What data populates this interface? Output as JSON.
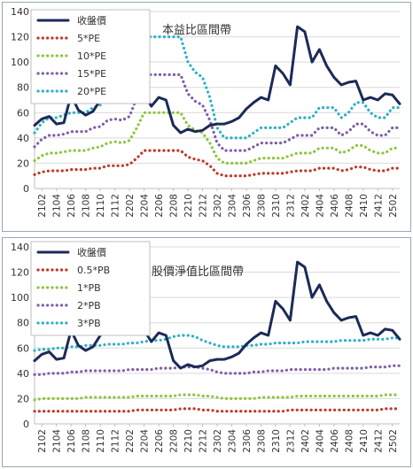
{
  "chart_data": [
    {
      "type": "line",
      "title": "本益比區間帶",
      "xlabel": "",
      "ylabel": "",
      "ylim": [
        0,
        140
      ],
      "yticks": [
        0,
        20,
        40,
        60,
        80,
        100,
        120,
        140
      ],
      "grid": true,
      "legend_position": "top-left",
      "x": [
        "2101",
        "2102",
        "2103",
        "2104",
        "2105",
        "2106",
        "2107",
        "2108",
        "2109",
        "2110",
        "2111",
        "2112",
        "2201",
        "2202",
        "2203",
        "2204",
        "2205",
        "2206",
        "2207",
        "2208",
        "2209",
        "2210",
        "2211",
        "2212",
        "2301",
        "2302",
        "2303",
        "2304",
        "2305",
        "2306",
        "2307",
        "2308",
        "2309",
        "2310",
        "2311",
        "2312",
        "2401",
        "2402",
        "2403",
        "2404",
        "2405",
        "2406",
        "2407",
        "2408",
        "2409",
        "2410",
        "2411",
        "2412",
        "2501",
        "2502",
        "2503"
      ],
      "xtick_labels": [
        "2102",
        "2104",
        "2106",
        "2108",
        "2110",
        "2112",
        "2202",
        "2204",
        "2206",
        "2208",
        "2210",
        "2212",
        "2302",
        "2304",
        "2306",
        "2308",
        "2310",
        "2312",
        "2402",
        "2404",
        "2406",
        "2408",
        "2410",
        "2412",
        "2502"
      ],
      "series": [
        {
          "name": "收盤價",
          "color": "#1b2a57",
          "style": "solid",
          "values": [
            50,
            55,
            57,
            51,
            52,
            74,
            62,
            58,
            61,
            70,
            80,
            72,
            83,
            88,
            72,
            74,
            65,
            72,
            70,
            50,
            44,
            47,
            45,
            46,
            50,
            51,
            51,
            53,
            56,
            63,
            68,
            72,
            70,
            97,
            91,
            82,
            128,
            124,
            100,
            110,
            97,
            88,
            82,
            84,
            85,
            70,
            72,
            70,
            75,
            74,
            67
          ]
        },
        {
          "name": "5*PE",
          "color": "#c0392b",
          "style": "dotted",
          "values": [
            11,
            13,
            14,
            14,
            14,
            15,
            15,
            15,
            16,
            16,
            18,
            18,
            18,
            19,
            24,
            30,
            30,
            30,
            30,
            30,
            30,
            25,
            23,
            22,
            18,
            12,
            10,
            10,
            10,
            10,
            11,
            12,
            12,
            12,
            12,
            13,
            14,
            14,
            14,
            16,
            16,
            16,
            14,
            15,
            17,
            17,
            15,
            14,
            14,
            16,
            16
          ]
        },
        {
          "name": "10*PE",
          "color": "#8dc63f",
          "style": "dotted",
          "values": [
            22,
            26,
            28,
            28,
            29,
            30,
            30,
            30,
            32,
            33,
            36,
            37,
            36,
            38,
            48,
            60,
            60,
            60,
            60,
            60,
            60,
            50,
            46,
            44,
            36,
            24,
            20,
            20,
            20,
            20,
            22,
            24,
            24,
            24,
            24,
            26,
            28,
            28,
            28,
            32,
            32,
            32,
            28,
            30,
            34,
            34,
            30,
            28,
            28,
            32,
            32
          ]
        },
        {
          "name": "15*PE",
          "color": "#7f5fa8",
          "style": "dotted",
          "values": [
            33,
            39,
            42,
            42,
            43,
            45,
            45,
            45,
            48,
            49,
            54,
            55,
            54,
            57,
            72,
            90,
            90,
            90,
            90,
            90,
            90,
            75,
            69,
            66,
            54,
            36,
            30,
            30,
            30,
            30,
            33,
            36,
            36,
            36,
            36,
            39,
            42,
            42,
            42,
            48,
            48,
            48,
            42,
            45,
            51,
            51,
            45,
            42,
            42,
            48,
            48
          ]
        },
        {
          "name": "20*PE",
          "color": "#2fb0c6",
          "style": "dotted",
          "values": [
            44,
            52,
            56,
            56,
            58,
            60,
            60,
            60,
            64,
            66,
            72,
            74,
            72,
            76,
            96,
            120,
            120,
            120,
            120,
            120,
            120,
            100,
            92,
            88,
            72,
            48,
            40,
            40,
            40,
            40,
            44,
            48,
            48,
            48,
            48,
            52,
            56,
            56,
            56,
            64,
            64,
            64,
            56,
            60,
            68,
            68,
            60,
            56,
            56,
            64,
            64
          ]
        }
      ]
    },
    {
      "type": "line",
      "title": "股價淨值比區間帶",
      "xlabel": "",
      "ylabel": "",
      "ylim": [
        0,
        140
      ],
      "yticks": [
        0,
        20,
        40,
        60,
        80,
        100,
        120,
        140
      ],
      "grid": true,
      "legend_position": "top-left",
      "x": [
        "2101",
        "2102",
        "2103",
        "2104",
        "2105",
        "2106",
        "2107",
        "2108",
        "2109",
        "2110",
        "2111",
        "2112",
        "2201",
        "2202",
        "2203",
        "2204",
        "2205",
        "2206",
        "2207",
        "2208",
        "2209",
        "2210",
        "2211",
        "2212",
        "2301",
        "2302",
        "2303",
        "2304",
        "2305",
        "2306",
        "2307",
        "2308",
        "2309",
        "2310",
        "2311",
        "2312",
        "2401",
        "2402",
        "2403",
        "2404",
        "2405",
        "2406",
        "2407",
        "2408",
        "2409",
        "2410",
        "2411",
        "2412",
        "2501",
        "2502",
        "2503"
      ],
      "xtick_labels": [
        "2102",
        "2104",
        "2106",
        "2108",
        "2110",
        "2112",
        "2202",
        "2204",
        "2206",
        "2208",
        "2210",
        "2212",
        "2302",
        "2304",
        "2306",
        "2308",
        "2310",
        "2312",
        "2402",
        "2404",
        "2406",
        "2408",
        "2410",
        "2412",
        "2502"
      ],
      "series": [
        {
          "name": "收盤價",
          "color": "#1b2a57",
          "style": "solid",
          "values": [
            50,
            55,
            57,
            51,
            52,
            74,
            62,
            58,
            61,
            70,
            80,
            72,
            83,
            88,
            72,
            74,
            65,
            72,
            70,
            50,
            44,
            47,
            45,
            46,
            50,
            51,
            51,
            53,
            56,
            63,
            68,
            72,
            70,
            97,
            91,
            82,
            128,
            124,
            100,
            110,
            97,
            88,
            82,
            84,
            85,
            70,
            72,
            70,
            75,
            74,
            67
          ]
        },
        {
          "name": "0.5*PB",
          "color": "#c0392b",
          "style": "dotted",
          "values": [
            10,
            10,
            10,
            10,
            10,
            10,
            10,
            10,
            10,
            10,
            10,
            10,
            10,
            10,
            11,
            11,
            11,
            11,
            11,
            11,
            12,
            12,
            12,
            11,
            11,
            10,
            10,
            10,
            10,
            10,
            10,
            10,
            10,
            10,
            10,
            11,
            11,
            11,
            11,
            11,
            11,
            11,
            11,
            11,
            11,
            11,
            11,
            11,
            12,
            12,
            12
          ]
        },
        {
          "name": "1*PB",
          "color": "#8dc63f",
          "style": "dotted",
          "values": [
            19,
            20,
            20,
            20,
            20,
            20,
            20,
            21,
            21,
            21,
            21,
            21,
            21,
            21,
            22,
            22,
            22,
            22,
            22,
            22,
            23,
            23,
            23,
            22,
            22,
            21,
            20,
            20,
            20,
            20,
            20,
            21,
            21,
            21,
            21,
            21,
            22,
            22,
            22,
            22,
            22,
            22,
            22,
            22,
            22,
            22,
            22,
            22,
            23,
            23,
            23
          ]
        },
        {
          "name": "2*PB",
          "color": "#7f5fa8",
          "style": "dotted",
          "values": [
            39,
            39,
            40,
            40,
            40,
            41,
            41,
            42,
            42,
            42,
            42,
            42,
            42,
            43,
            43,
            43,
            43,
            44,
            44,
            44,
            45,
            45,
            45,
            44,
            43,
            41,
            40,
            40,
            40,
            40,
            41,
            41,
            42,
            42,
            42,
            43,
            43,
            43,
            43,
            43,
            43,
            44,
            44,
            44,
            44,
            44,
            45,
            45,
            45,
            46,
            46
          ]
        },
        {
          "name": "3*PB",
          "color": "#2fb0c6",
          "style": "dotted",
          "values": [
            58,
            59,
            59,
            60,
            60,
            61,
            61,
            62,
            62,
            62,
            63,
            63,
            63,
            64,
            64,
            65,
            66,
            66,
            67,
            69,
            70,
            70,
            69,
            66,
            64,
            62,
            61,
            61,
            61,
            62,
            62,
            63,
            63,
            64,
            64,
            64,
            64,
            65,
            65,
            65,
            65,
            65,
            66,
            66,
            66,
            66,
            67,
            67,
            67,
            68,
            68
          ]
        }
      ]
    }
  ]
}
